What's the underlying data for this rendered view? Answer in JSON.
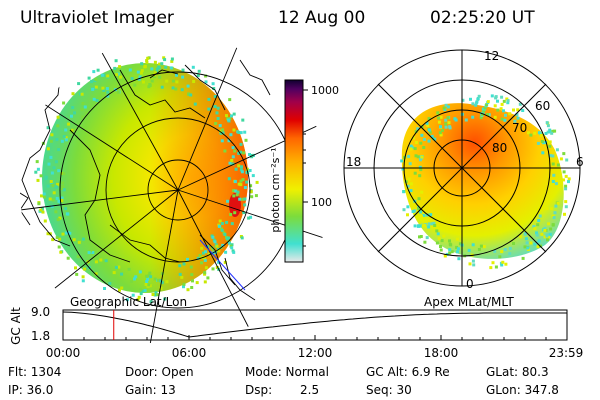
{
  "header": {
    "instrument": "Ultraviolet Imager",
    "date": "12 Aug 00",
    "time": "02:25:20 UT"
  },
  "colorbar": {
    "unit_label": "photon cm⁻²s⁻¹",
    "ticks": [
      {
        "value": 1000,
        "label": "1000"
      },
      {
        "value": 100,
        "label": "100"
      }
    ],
    "range": [
      20,
      1300
    ],
    "scale": "log",
    "colors": [
      "#e8e8e8",
      "#40e0d0",
      "#7cdc3c",
      "#f0f000",
      "#ffb000",
      "#ff6600",
      "#e00000",
      "#a0004a",
      "#500060",
      "#100030"
    ]
  },
  "left_panel": {
    "label": "Geographic Lat/Lon"
  },
  "right_panel": {
    "label": "Apex MLat/MLT",
    "mlt_labels": {
      "top": "12",
      "left": "18",
      "right": "6",
      "bottom": "0"
    },
    "lat_labels": [
      "60",
      "70",
      "80"
    ]
  },
  "timeline": {
    "ylabel": "GC Alt",
    "y_ticks": [
      "9.0",
      "1.8"
    ],
    "y_range": [
      1.8,
      9.0
    ],
    "x_ticks": [
      "00:00",
      "06:00",
      "12:00",
      "18:00",
      "23:59"
    ],
    "cursor_time": "02:25"
  },
  "info": {
    "flt": "Flt: 1304",
    "ip": "IP: 36.0",
    "door": "Door: Open",
    "gain": "Gain: 13",
    "mode": "Mode: Normal",
    "dsp_label": "Dsp:",
    "dsp_value": "2.5",
    "gcalt": "GC Alt: 6.9 Re",
    "seq": "Seq: 30",
    "glat": "GLat: 80.3",
    "glon": "GLon: 347.8"
  }
}
